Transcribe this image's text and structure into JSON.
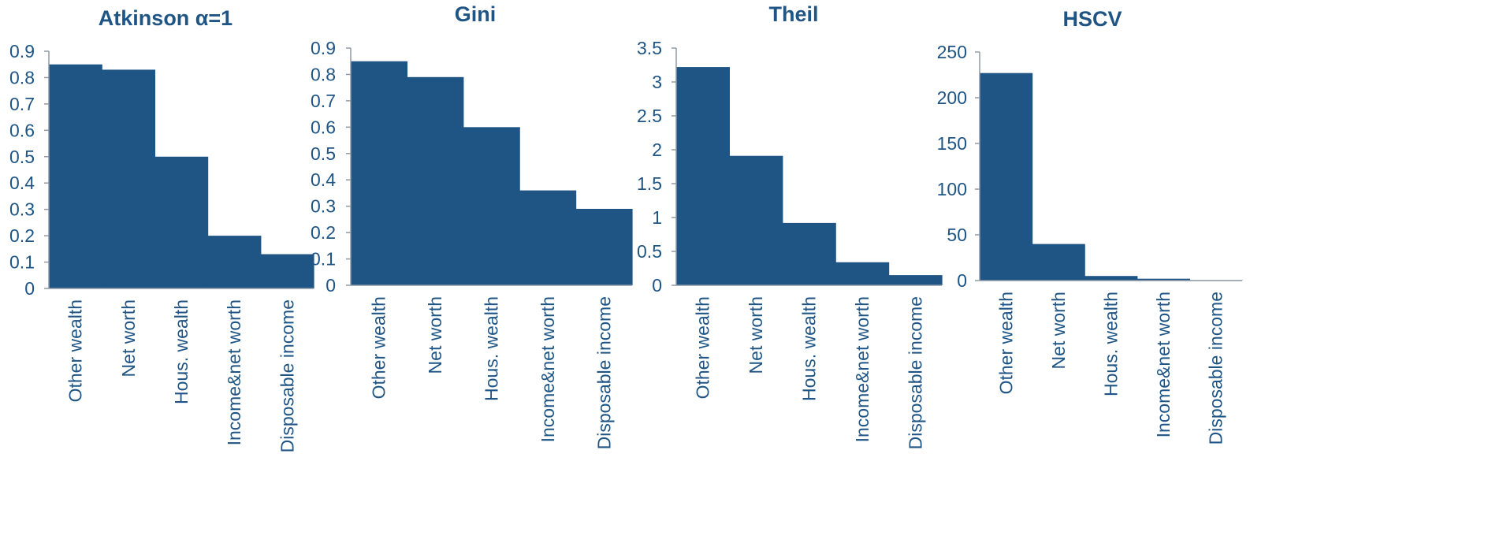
{
  "colors": {
    "bar": "#1f5585",
    "axis": "#8e9aa6",
    "text": "#1f5585"
  },
  "chart_data": [
    {
      "type": "bar",
      "title": "Atkinson α=1",
      "categories": [
        "Other wealth",
        "Net worth",
        "Hous. wealth",
        "Income&net worth",
        "Disposable income"
      ],
      "values": [
        0.85,
        0.83,
        0.5,
        0.2,
        0.13
      ],
      "ylim": [
        0,
        0.9
      ],
      "yticks": [
        "0",
        "0.1",
        "0.2",
        "0.3",
        "0.4",
        "0.5",
        "0.6",
        "0.7",
        "0.8",
        "0.9"
      ],
      "xlabel": "",
      "ylabel": "",
      "grid": false,
      "legend": "none"
    },
    {
      "type": "bar",
      "title": "Gini",
      "categories": [
        "Other wealth",
        "Net worth",
        "Hous. wealth",
        "Income&net worth",
        "Disposable income"
      ],
      "values": [
        0.85,
        0.79,
        0.6,
        0.36,
        0.29
      ],
      "ylim": [
        0,
        0.9
      ],
      "yticks": [
        "0",
        "0.1",
        "0.2",
        "0.3",
        "0.4",
        "0.5",
        "0.6",
        "0.7",
        "0.8",
        "0.9"
      ],
      "xlabel": "",
      "ylabel": "",
      "grid": false,
      "legend": "none"
    },
    {
      "type": "bar",
      "title": "Theil",
      "categories": [
        "Other wealth",
        "Net worth",
        "Hous. wealth",
        "Income&net worth",
        "Disposable income"
      ],
      "values": [
        3.22,
        1.91,
        0.92,
        0.34,
        0.15
      ],
      "ylim": [
        0,
        3.5
      ],
      "yticks": [
        "0",
        "0.5",
        "1",
        "1.5",
        "2",
        "2.5",
        "3",
        "3.5"
      ],
      "xlabel": "",
      "ylabel": "",
      "grid": false,
      "legend": "none"
    },
    {
      "type": "bar",
      "title": "HSCV",
      "categories": [
        "Other wealth",
        "Net worth",
        "Hous. wealth",
        "Income&net worth",
        "Disposable income"
      ],
      "values": [
        227,
        40,
        5,
        2,
        0.5
      ],
      "ylim": [
        0,
        250
      ],
      "yticks": [
        "0",
        "50",
        "100",
        "150",
        "200",
        "250"
      ],
      "xlabel": "",
      "ylabel": "",
      "grid": false,
      "legend": "none"
    }
  ]
}
